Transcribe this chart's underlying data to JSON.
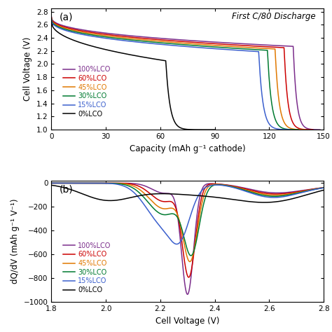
{
  "title_a": "First C/80 Discharge",
  "label_a": "(a)",
  "label_b": "(b)",
  "xlabel_a": "Capacity (mAh g⁻¹ cathode)",
  "ylabel_a": "Cell Voltage (V)",
  "xlabel_b": "Cell Voltage (V)",
  "ylabel_b": "dQ/dV (mAh g⁻¹ V⁻¹)",
  "xlim_a": [
    0,
    150
  ],
  "ylim_a": [
    1.0,
    2.85
  ],
  "xlim_b": [
    1.8,
    2.8
  ],
  "ylim_b": [
    -1000,
    20
  ],
  "xticks_a": [
    0,
    30,
    60,
    90,
    120,
    150
  ],
  "yticks_a": [
    1.0,
    1.2,
    1.4,
    1.6,
    1.8,
    2.0,
    2.2,
    2.4,
    2.6,
    2.8
  ],
  "xticks_b": [
    1.8,
    2.0,
    2.2,
    2.4,
    2.6,
    2.8
  ],
  "yticks_b": [
    0,
    -200,
    -400,
    -600,
    -800,
    -1000
  ],
  "colors": {
    "100%LCO": "#7B2D8B",
    "60%LCO": "#CC0000",
    "45%LCO": "#E07800",
    "30%LCO": "#007A30",
    "15%LCO": "#3A5FCD",
    "0%LCO": "#000000"
  },
  "legend_order": [
    "100%LCO",
    "60%LCO",
    "45%LCO",
    "30%LCO",
    "15%LCO",
    "0%LCO"
  ]
}
